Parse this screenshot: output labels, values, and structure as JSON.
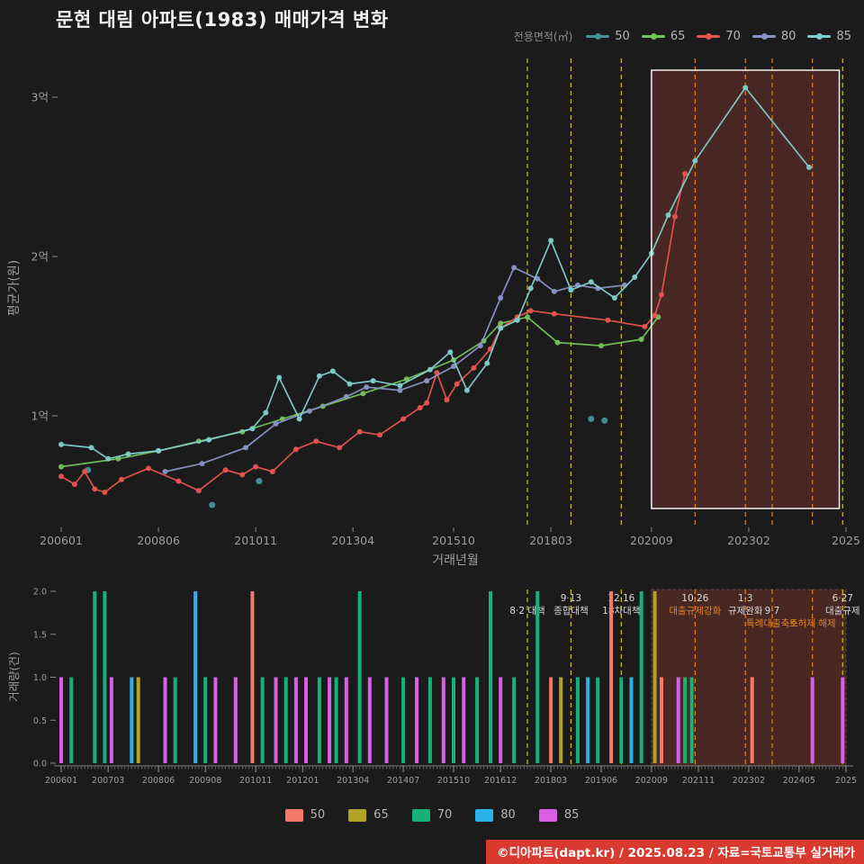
{
  "title": "문현 대림 아파트(1983) 매매가격 변화",
  "footer": {
    "text": "©디아파트(dapt.kr) / 2025.08.23 / 자료=국토교통부 실거래가",
    "bg": "#d93a30"
  },
  "colors": {
    "background": "#1b1b1b",
    "axis_text": "#9e9e9e",
    "title_text": "#f2f2f2",
    "event_yellow": "#cfc21a",
    "event_orange": "#e0831f",
    "highlight_fill": "#8a3a32"
  },
  "chart_data": [
    {
      "type": "line",
      "name": "price-trend",
      "legend_label": "전용면적(㎡)",
      "xlabel": "거래년월",
      "ylabel": "평균가(원)",
      "ylim": [
        0.3,
        3.3
      ],
      "xlim": [
        "2006-01",
        "2025-07"
      ],
      "y_ticks": [
        {
          "label": "1억",
          "value": 1
        },
        {
          "label": "2억",
          "value": 2
        },
        {
          "label": "3억",
          "value": 3
        }
      ],
      "x_ticks": [
        {
          "label": "200601",
          "date": "2006-01"
        },
        {
          "label": "200806",
          "date": "2008-06"
        },
        {
          "label": "201011",
          "date": "2010-11"
        },
        {
          "label": "201304",
          "date": "2013-04"
        },
        {
          "label": "201510",
          "date": "2015-10"
        },
        {
          "label": "201803",
          "date": "2018-03"
        },
        {
          "label": "202009",
          "date": "2020-09"
        },
        {
          "label": "202302",
          "date": "2023-02"
        },
        {
          "label": "2025",
          "date": "2025-07"
        }
      ],
      "series": [
        {
          "name": "50",
          "color": "#47919b",
          "style": "scatter",
          "points": [
            [
              "2006-09",
              0.66
            ],
            [
              "2009-10",
              0.44
            ],
            [
              "2010-12",
              0.59
            ],
            [
              "2019-03",
              0.98
            ],
            [
              "2019-07",
              0.97
            ]
          ]
        },
        {
          "name": "65",
          "color": "#74c35a",
          "style": "line",
          "points": [
            [
              "2006-01",
              0.68
            ],
            [
              "2007-06",
              0.73
            ],
            [
              "2008-06",
              0.78
            ],
            [
              "2009-06",
              0.84
            ],
            [
              "2010-07",
              0.9
            ],
            [
              "2011-07",
              0.98
            ],
            [
              "2012-07",
              1.06
            ],
            [
              "2013-07",
              1.14
            ],
            [
              "2014-08",
              1.23
            ],
            [
              "2015-10",
              1.35
            ],
            [
              "2016-07",
              1.47
            ],
            [
              "2016-12",
              1.58
            ],
            [
              "2017-08",
              1.62
            ],
            [
              "2018-05",
              1.46
            ],
            [
              "2019-06",
              1.44
            ],
            [
              "2020-06",
              1.48
            ],
            [
              "2020-11",
              1.62
            ]
          ]
        },
        {
          "name": "70",
          "color": "#e8544e",
          "style": "line",
          "points": [
            [
              "2006-01",
              0.62
            ],
            [
              "2006-05",
              0.57
            ],
            [
              "2006-08",
              0.65
            ],
            [
              "2006-11",
              0.54
            ],
            [
              "2007-02",
              0.52
            ],
            [
              "2007-07",
              0.6
            ],
            [
              "2008-03",
              0.67
            ],
            [
              "2008-12",
              0.59
            ],
            [
              "2009-06",
              0.53
            ],
            [
              "2010-02",
              0.66
            ],
            [
              "2010-07",
              0.63
            ],
            [
              "2010-11",
              0.68
            ],
            [
              "2011-04",
              0.65
            ],
            [
              "2011-11",
              0.79
            ],
            [
              "2012-05",
              0.84
            ],
            [
              "2012-12",
              0.8
            ],
            [
              "2013-06",
              0.9
            ],
            [
              "2013-12",
              0.88
            ],
            [
              "2014-07",
              0.98
            ],
            [
              "2014-12",
              1.05
            ],
            [
              "2015-02",
              1.08
            ],
            [
              "2015-05",
              1.27
            ],
            [
              "2015-08",
              1.1
            ],
            [
              "2015-11",
              1.2
            ],
            [
              "2016-04",
              1.3
            ],
            [
              "2016-09",
              1.42
            ],
            [
              "2016-12",
              1.55
            ],
            [
              "2017-05",
              1.62
            ],
            [
              "2017-09",
              1.66
            ],
            [
              "2018-04",
              1.64
            ],
            [
              "2019-08",
              1.6
            ],
            [
              "2020-07",
              1.56
            ],
            [
              "2020-10",
              1.63
            ],
            [
              "2020-12",
              1.76
            ],
            [
              "2021-04",
              2.25
            ],
            [
              "2021-07",
              2.52
            ]
          ]
        },
        {
          "name": "80",
          "color": "#8a93c7",
          "style": "line",
          "points": [
            [
              "2008-08",
              0.65
            ],
            [
              "2009-07",
              0.7
            ],
            [
              "2010-08",
              0.8
            ],
            [
              "2011-05",
              0.95
            ],
            [
              "2012-03",
              1.03
            ],
            [
              "2013-02",
              1.12
            ],
            [
              "2013-08",
              1.18
            ],
            [
              "2014-06",
              1.16
            ],
            [
              "2015-02",
              1.22
            ],
            [
              "2015-10",
              1.31
            ],
            [
              "2016-06",
              1.44
            ],
            [
              "2016-12",
              1.74
            ],
            [
              "2017-04",
              1.93
            ],
            [
              "2017-11",
              1.86
            ],
            [
              "2018-04",
              1.78
            ],
            [
              "2018-11",
              1.82
            ],
            [
              "2019-05",
              1.8
            ],
            [
              "2020-01",
              1.82
            ]
          ]
        },
        {
          "name": "85",
          "color": "#7fcdcb",
          "style": "line",
          "points": [
            [
              "2006-01",
              0.82
            ],
            [
              "2006-10",
              0.8
            ],
            [
              "2007-03",
              0.73
            ],
            [
              "2007-09",
              0.76
            ],
            [
              "2008-06",
              0.78
            ],
            [
              "2009-09",
              0.85
            ],
            [
              "2010-10",
              0.92
            ],
            [
              "2011-02",
              1.02
            ],
            [
              "2011-06",
              1.24
            ],
            [
              "2011-12",
              0.98
            ],
            [
              "2012-06",
              1.25
            ],
            [
              "2012-10",
              1.28
            ],
            [
              "2013-03",
              1.2
            ],
            [
              "2013-10",
              1.22
            ],
            [
              "2014-06",
              1.19
            ],
            [
              "2015-03",
              1.29
            ],
            [
              "2015-09",
              1.4
            ],
            [
              "2016-02",
              1.16
            ],
            [
              "2016-08",
              1.33
            ],
            [
              "2016-12",
              1.55
            ],
            [
              "2017-05",
              1.6
            ],
            [
              "2017-09",
              1.8
            ],
            [
              "2018-03",
              2.1
            ],
            [
              "2018-09",
              1.79
            ],
            [
              "2019-03",
              1.84
            ],
            [
              "2019-10",
              1.74
            ],
            [
              "2020-04",
              1.87
            ],
            [
              "2020-09",
              2.02
            ],
            [
              "2021-02",
              2.26
            ],
            [
              "2021-10",
              2.6
            ],
            [
              "2023-01",
              3.06
            ],
            [
              "2024-08",
              2.56
            ]
          ]
        }
      ],
      "highlight_box": {
        "from": "2020-09",
        "to": "2025-05",
        "fill": "#8a3a32",
        "opacity": 0.42,
        "border": "#f2f2f2"
      },
      "events": [
        {
          "date": "2017-08",
          "line_color": "#cfc21a",
          "labels": [
            {
              "t": "8·2 대책",
              "row": 1
            }
          ]
        },
        {
          "date": "2018-09",
          "line_color": "#cfc21a",
          "labels": [
            {
              "t": "9·13",
              "row": 0
            },
            {
              "t": "종합대책",
              "row": 1
            }
          ]
        },
        {
          "date": "2019-12",
          "line_color": "#cfc21a",
          "labels": [
            {
              "t": "12·16",
              "row": 0
            },
            {
              "t": "18차대책",
              "row": 1
            }
          ]
        },
        {
          "date": "2021-10",
          "line_color": "#e0831f",
          "labels": [
            {
              "t": "10·26",
              "row": 0
            },
            {
              "t": "대출규제강화",
              "c": "#e0831f",
              "row": 1
            }
          ]
        },
        {
          "date": "2023-01",
          "line_color": "#e0831f",
          "labels": [
            {
              "t": "1·3",
              "row": 0
            },
            {
              "t": "규제완화",
              "row": 1
            }
          ]
        },
        {
          "date": "2023-09",
          "line_color": "#e0831f",
          "labels": [
            {
              "t": "9·7",
              "row": 1
            },
            {
              "t": "특례대출축소",
              "c": "#e0831f",
              "row": 2
            }
          ]
        },
        {
          "date": "2024-09",
          "line_color": "#e0831f",
          "labels": [
            {
              "t": "토허제 해제",
              "c": "#e0831f",
              "row": 2
            }
          ]
        },
        {
          "date": "2025-06",
          "line_color": "#cfc21a",
          "labels": [
            {
              "t": "6·27",
              "row": 0
            },
            {
              "t": "대출규제",
              "row": 1
            }
          ]
        }
      ]
    },
    {
      "type": "bar",
      "name": "transaction-volume",
      "ylabel": "거래량(건)",
      "ylim": [
        0,
        2
      ],
      "y_ticks": [
        {
          "label": "0.0",
          "value": 0
        },
        {
          "label": "0.5",
          "value": 0.5
        },
        {
          "label": "1.0",
          "value": 1
        },
        {
          "label": "1.5",
          "value": 1.5
        },
        {
          "label": "2.0",
          "value": 2
        }
      ],
      "x_ticks": [
        {
          "label": "200601",
          "date": "2006-01"
        },
        {
          "label": "200703",
          "date": "2007-03"
        },
        {
          "label": "200806",
          "date": "2008-06"
        },
        {
          "label": "200908",
          "date": "2009-08"
        },
        {
          "label": "201011",
          "date": "2010-11"
        },
        {
          "label": "201201",
          "date": "2012-01"
        },
        {
          "label": "201304",
          "date": "2013-04"
        },
        {
          "label": "201407",
          "date": "2014-07"
        },
        {
          "label": "201510",
          "date": "2015-10"
        },
        {
          "label": "201612",
          "date": "2016-12"
        },
        {
          "label": "201803",
          "date": "2018-03"
        },
        {
          "label": "201906",
          "date": "2019-06"
        },
        {
          "label": "202009",
          "date": "2020-09"
        },
        {
          "label": "202111",
          "date": "2021-11"
        },
        {
          "label": "202302",
          "date": "2023-02"
        },
        {
          "label": "202405",
          "date": "2024-05"
        },
        {
          "label": "2025",
          "date": "2025-07"
        }
      ],
      "legend": [
        {
          "name": "50",
          "color": "#f4796b"
        },
        {
          "name": "65",
          "color": "#b3a325"
        },
        {
          "name": "70",
          "color": "#15b179"
        },
        {
          "name": "80",
          "color": "#2bb1ea"
        },
        {
          "name": "85",
          "color": "#d95fe5"
        }
      ],
      "highlight_to": "2025-07",
      "bars": [
        [
          "2006-01",
          "85",
          1
        ],
        [
          "2006-04",
          "70",
          1
        ],
        [
          "2006-11",
          "70",
          2
        ],
        [
          "2007-02",
          "70",
          2
        ],
        [
          "2007-04",
          "85",
          1
        ],
        [
          "2007-10",
          "80",
          1
        ],
        [
          "2007-12",
          "65",
          1
        ],
        [
          "2008-08",
          "85",
          1
        ],
        [
          "2008-11",
          "70",
          1
        ],
        [
          "2009-05",
          "80",
          2
        ],
        [
          "2009-08",
          "70",
          1
        ],
        [
          "2009-11",
          "85",
          1
        ],
        [
          "2010-05",
          "85",
          1
        ],
        [
          "2010-10",
          "50",
          2
        ],
        [
          "2011-01",
          "70",
          1
        ],
        [
          "2011-05",
          "85",
          1
        ],
        [
          "2011-08",
          "70",
          1
        ],
        [
          "2011-11",
          "85",
          1
        ],
        [
          "2012-02",
          "85",
          1
        ],
        [
          "2012-06",
          "70",
          1
        ],
        [
          "2012-09",
          "85",
          1
        ],
        [
          "2012-11",
          "70",
          1
        ],
        [
          "2013-02",
          "85",
          1
        ],
        [
          "2013-06",
          "70",
          2
        ],
        [
          "2013-09",
          "85",
          1
        ],
        [
          "2014-02",
          "85",
          1
        ],
        [
          "2014-07",
          "70",
          1
        ],
        [
          "2014-11",
          "85",
          1
        ],
        [
          "2015-03",
          "70",
          1
        ],
        [
          "2015-07",
          "85",
          1
        ],
        [
          "2015-10",
          "70",
          1
        ],
        [
          "2016-01",
          "85",
          1
        ],
        [
          "2016-05",
          "70",
          1
        ],
        [
          "2016-09",
          "70",
          2
        ],
        [
          "2016-12",
          "85",
          1
        ],
        [
          "2017-04",
          "70",
          1
        ],
        [
          "2017-11",
          "70",
          2
        ],
        [
          "2018-03",
          "50",
          1
        ],
        [
          "2018-06",
          "65",
          1
        ],
        [
          "2018-11",
          "70",
          1
        ],
        [
          "2019-02",
          "80",
          1
        ],
        [
          "2019-05",
          "70",
          1
        ],
        [
          "2019-09",
          "50",
          2
        ],
        [
          "2019-12",
          "70",
          1
        ],
        [
          "2020-03",
          "80",
          1
        ],
        [
          "2020-06",
          "70",
          2
        ],
        [
          "2020-10",
          "65",
          2
        ],
        [
          "2020-12",
          "50",
          1
        ],
        [
          "2021-05",
          "85",
          1
        ],
        [
          "2021-07",
          "70",
          1
        ],
        [
          "2021-09",
          "70",
          1
        ],
        [
          "2023-03",
          "50",
          1
        ],
        [
          "2024-09",
          "85",
          1
        ],
        [
          "2025-06",
          "85",
          1
        ]
      ]
    }
  ]
}
